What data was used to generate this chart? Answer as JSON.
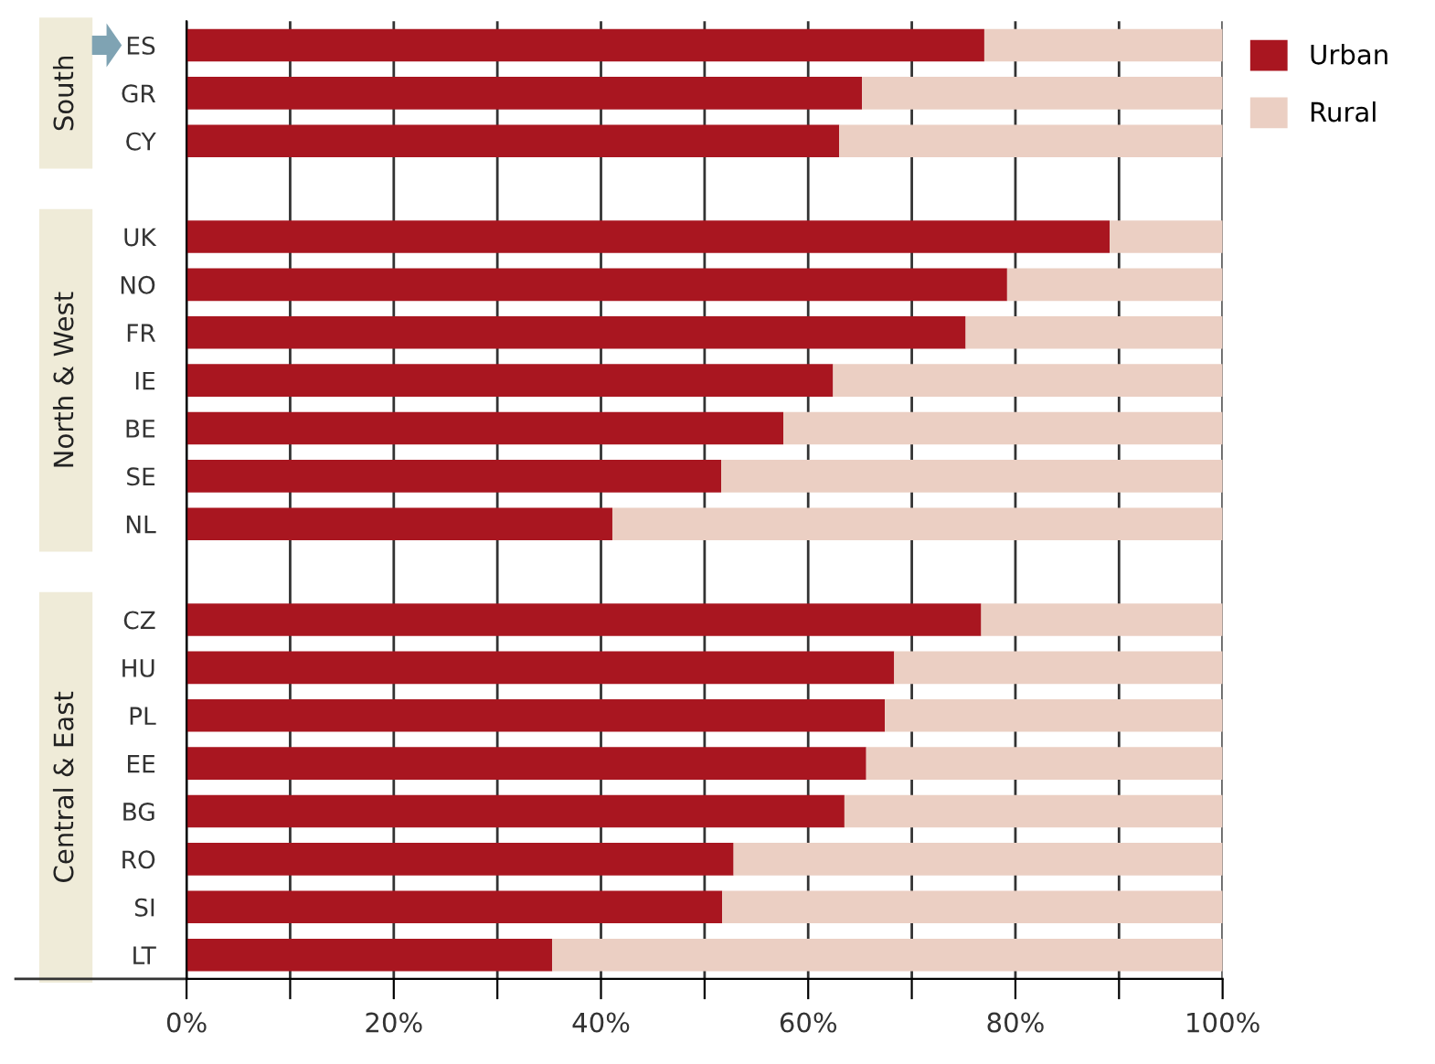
{
  "chart_data": {
    "type": "bar",
    "orientation": "horizontal",
    "stacked": true,
    "categories": [
      "ES",
      "GR",
      "CY",
      null,
      "UK",
      "NO",
      "FR",
      "IE",
      "BE",
      "SE",
      "NL",
      null,
      "CZ",
      "HU",
      "PL",
      "EE",
      "BG",
      "RO",
      "SI",
      "LT"
    ],
    "series": [
      {
        "name": "Urban",
        "color": "#a91620",
        "values": [
          77.0,
          65.2,
          63.0,
          null,
          89.1,
          79.2,
          75.2,
          62.4,
          57.6,
          51.6,
          41.1,
          null,
          76.7,
          68.3,
          67.4,
          65.6,
          63.5,
          52.8,
          51.7,
          35.3
        ]
      },
      {
        "name": "Rural",
        "color": "#ebcfc3",
        "values": [
          23.0,
          34.8,
          37.0,
          null,
          10.9,
          20.8,
          24.8,
          37.6,
          42.4,
          48.4,
          58.9,
          null,
          23.3,
          31.7,
          32.6,
          34.4,
          36.5,
          47.2,
          48.3,
          64.7
        ]
      }
    ],
    "xlim": [
      0,
      100
    ],
    "xticks": [
      {
        "value": 0,
        "label": "0%"
      },
      {
        "value": 10,
        "label": null
      },
      {
        "value": 20,
        "label": "20%"
      },
      {
        "value": 30,
        "label": null
      },
      {
        "value": 40,
        "label": "40%"
      },
      {
        "value": 50,
        "label": null
      },
      {
        "value": 60,
        "label": "60%"
      },
      {
        "value": 70,
        "label": null
      },
      {
        "value": 80,
        "label": "80%"
      },
      {
        "value": 90,
        "label": null
      },
      {
        "value": 100,
        "label": "100%"
      }
    ],
    "grid": "x",
    "legend": "top right",
    "annotations": [
      "South",
      "North & West",
      "Central & East"
    ]
  }
}
